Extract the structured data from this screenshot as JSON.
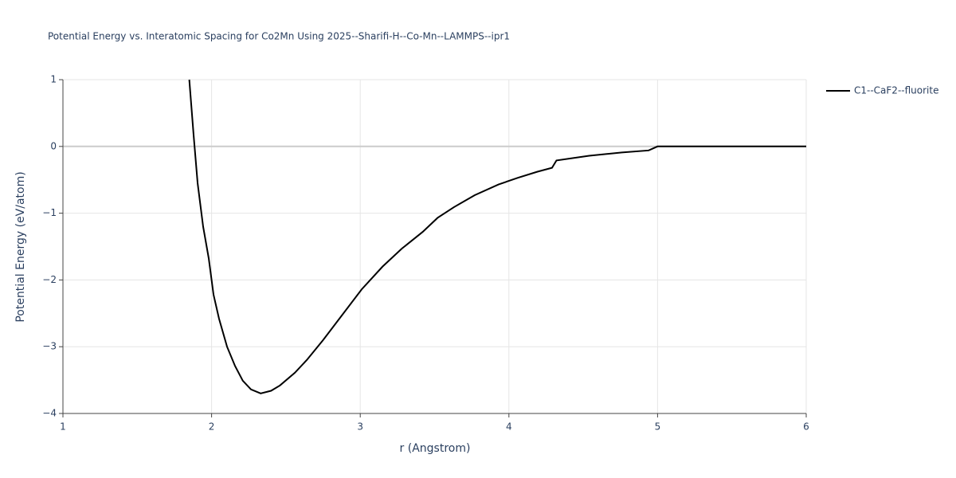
{
  "chart_data": {
    "type": "line",
    "title": "Potential Energy vs. Interatomic Spacing for Co2Mn Using 2025--Sharifi-H--Co-Mn--LAMMPS--ipr1",
    "x_label": "r (Angstrom)",
    "y_label": "Potential Energy (eV/atom)",
    "xlim": [
      1,
      6
    ],
    "ylim": [
      -4,
      1
    ],
    "xticks": [
      1,
      2,
      3,
      4,
      5,
      6
    ],
    "yticks": [
      {
        "value": -4,
        "label": "−4"
      },
      {
        "value": -3,
        "label": "−3"
      },
      {
        "value": -2,
        "label": "−2"
      },
      {
        "value": -1,
        "label": "−1"
      },
      0,
      1
    ],
    "grid": true,
    "legend": "top-right",
    "series": [
      {
        "name": "C1--CaF2--fluorite",
        "color": "#000000",
        "x": [
          1.85,
          1.879,
          1.906,
          1.943,
          1.981,
          2.013,
          2.05,
          2.104,
          2.158,
          2.21,
          2.265,
          2.33,
          2.4,
          2.46,
          2.56,
          2.64,
          2.75,
          2.88,
          3.01,
          3.15,
          3.28,
          3.42,
          3.52,
          3.63,
          3.77,
          3.93,
          4.06,
          4.19,
          4.29,
          4.32,
          4.54,
          4.76,
          4.94,
          5.0,
          6.0
        ],
        "values": [
          1.0,
          0.17,
          -0.55,
          -1.2,
          -1.68,
          -2.22,
          -2.58,
          -3.0,
          -3.29,
          -3.51,
          -3.64,
          -3.7,
          -3.66,
          -3.58,
          -3.39,
          -3.2,
          -2.9,
          -2.52,
          -2.14,
          -1.8,
          -1.53,
          -1.28,
          -1.07,
          -0.91,
          -0.73,
          -0.57,
          -0.47,
          -0.38,
          -0.32,
          -0.21,
          -0.14,
          -0.09,
          -0.06,
          0,
          0
        ]
      }
    ]
  }
}
